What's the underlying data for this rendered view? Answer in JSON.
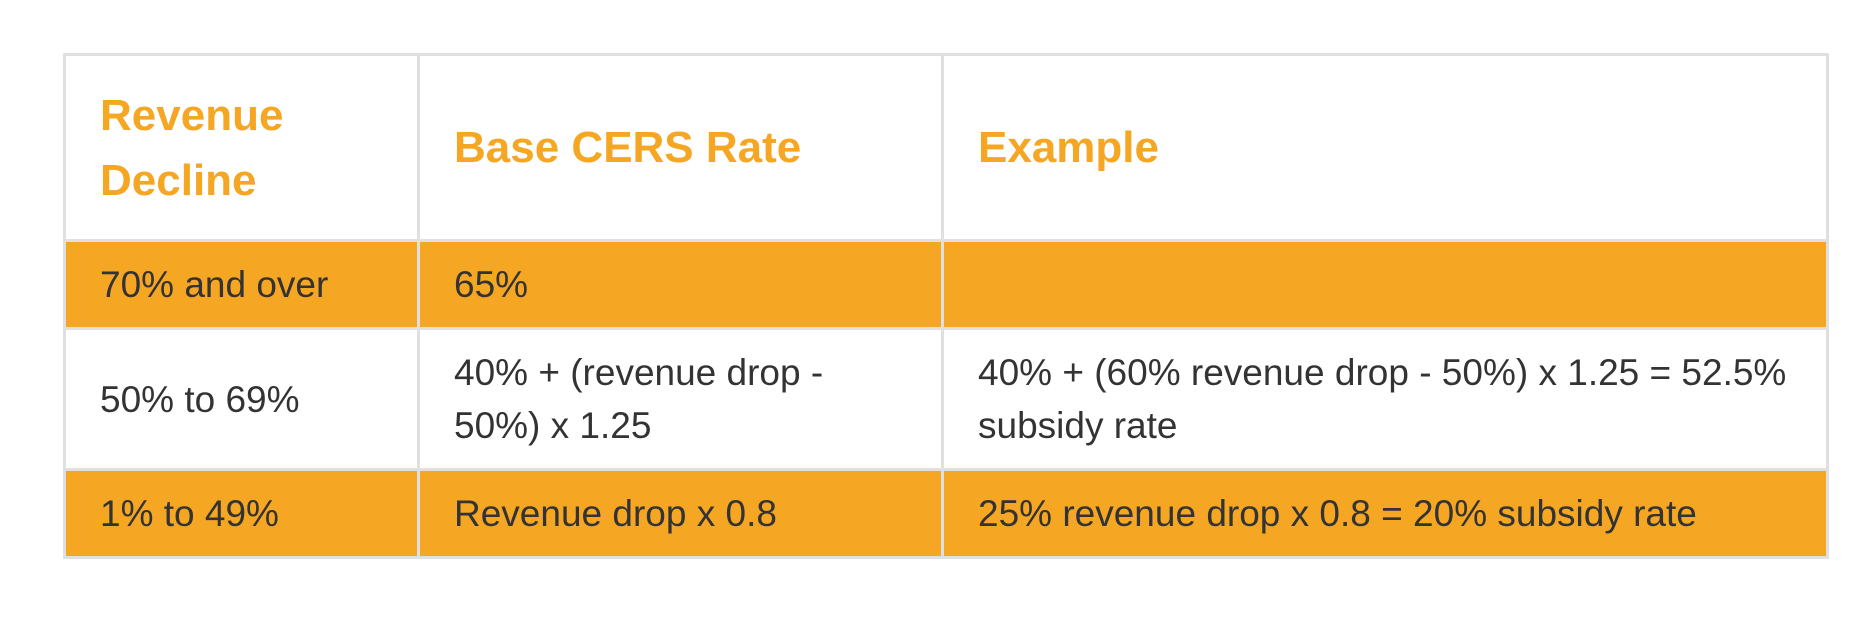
{
  "table": {
    "headers": [
      "Revenue Decline",
      "Base CERS Rate",
      "Example"
    ],
    "rows": [
      [
        "70% and over",
        "65%",
        ""
      ],
      [
        "50% to 69%",
        "40% + (revenue drop - 50%) x 1.25",
        "40% + (60% revenue drop - 50%) x 1.25 = 52.5% subsidy rate"
      ],
      [
        "1% to 49%",
        "Revenue drop x 0.8",
        "25% revenue drop x 0.8 = 20% subsidy rate"
      ]
    ]
  },
  "colors": {
    "accent": "#f5a623",
    "text": "#333333",
    "border": "#e0e0e0",
    "background": "#ffffff"
  }
}
